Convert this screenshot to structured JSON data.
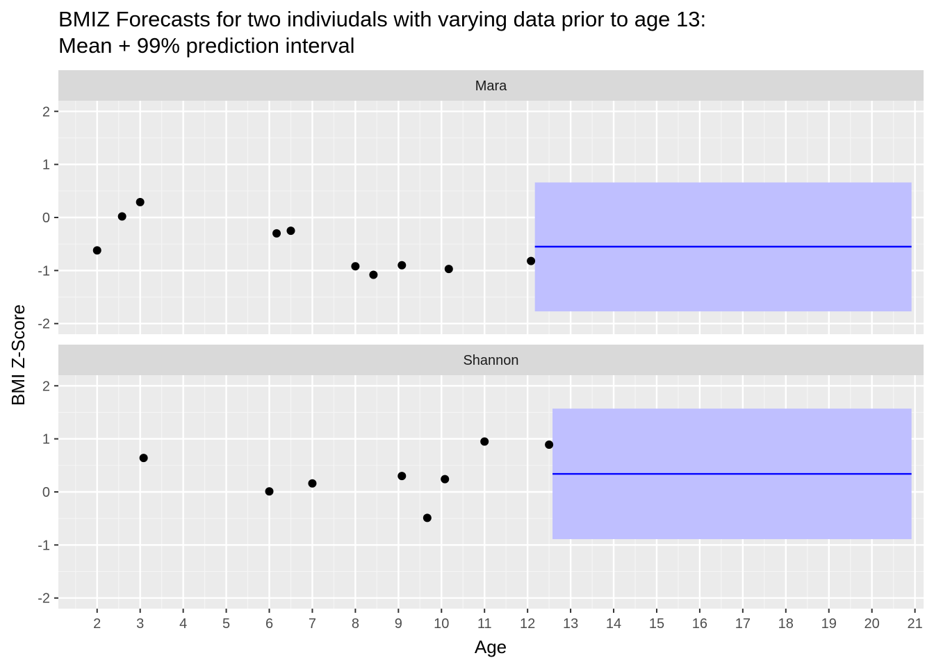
{
  "title_lines": [
    "BMIZ Forecasts for two indiviudals with varying data prior to age 13:",
    "Mean + 99% prediction interval"
  ],
  "chart_data": {
    "type": "scatter",
    "title": "BMIZ Forecasts for two indiviudals with varying data prior to age 13: Mean + 99% prediction interval",
    "xlabel": "Age",
    "ylabel": "BMI Z-Score",
    "xlim": [
      1.1,
      21.2
    ],
    "ylim": [
      -2.2,
      2.2
    ],
    "x_ticks": [
      2,
      3,
      4,
      5,
      6,
      7,
      8,
      9,
      10,
      11,
      12,
      13,
      14,
      15,
      16,
      17,
      18,
      19,
      20,
      21
    ],
    "y_ticks": [
      -2,
      -1,
      0,
      1,
      2
    ],
    "y_tick_labels": [
      "-2",
      "-1",
      "0",
      "1",
      "2"
    ],
    "facet_layout": "rows",
    "grid": true,
    "colors": {
      "panel_bg": "#ebebeb",
      "strip_bg": "#d9d9d9",
      "points": "#000000",
      "mean_line": "#0000ff",
      "interval_fill": "#bfbfff"
    },
    "panels": [
      {
        "label": "Mara",
        "points": [
          {
            "x": 2.0,
            "y": -0.62
          },
          {
            "x": 2.58,
            "y": 0.02
          },
          {
            "x": 3.0,
            "y": 0.29
          },
          {
            "x": 6.17,
            "y": -0.3
          },
          {
            "x": 6.5,
            "y": -0.25
          },
          {
            "x": 8.0,
            "y": -0.92
          },
          {
            "x": 8.42,
            "y": -1.08
          },
          {
            "x": 9.08,
            "y": -0.9
          },
          {
            "x": 10.17,
            "y": -0.97
          },
          {
            "x": 12.08,
            "y": -0.82
          }
        ],
        "forecast": {
          "x_start": 12.17,
          "x_end": 20.92,
          "mean": -0.55,
          "lower": -1.77,
          "upper": 0.66
        }
      },
      {
        "label": "Shannon",
        "points": [
          {
            "x": 3.08,
            "y": 0.64
          },
          {
            "x": 6.0,
            "y": 0.01
          },
          {
            "x": 7.0,
            "y": 0.16
          },
          {
            "x": 9.08,
            "y": 0.3
          },
          {
            "x": 9.67,
            "y": -0.49
          },
          {
            "x": 10.08,
            "y": 0.24
          },
          {
            "x": 11.0,
            "y": 0.95
          },
          {
            "x": 12.5,
            "y": 0.89
          }
        ],
        "forecast": {
          "x_start": 12.58,
          "x_end": 20.92,
          "mean": 0.34,
          "lower": -0.89,
          "upper": 1.57
        }
      }
    ]
  }
}
